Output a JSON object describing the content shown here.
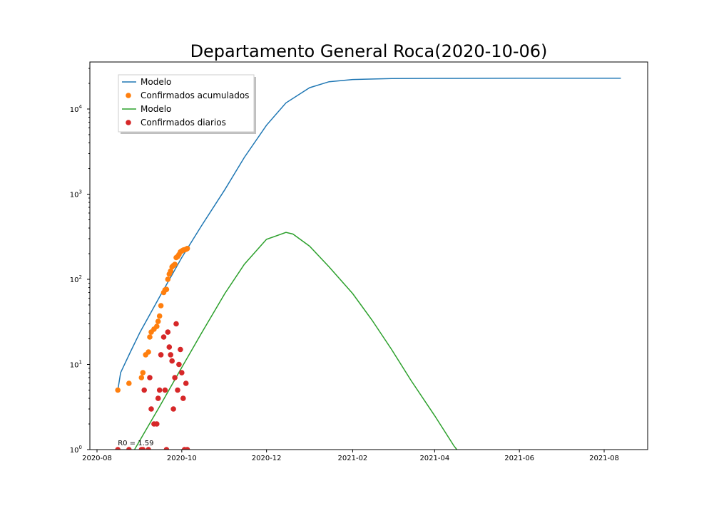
{
  "chart_data": {
    "type": "line",
    "title": "Departamento General Roca(2020-10-06)",
    "xlabel": "",
    "ylabel": "",
    "yscale": "log",
    "ylim": [
      1,
      33000
    ],
    "xlim": [
      "2020-08-01",
      "2021-08-31"
    ],
    "x_ticks": [
      "2020-08",
      "2020-10",
      "2020-12",
      "2021-02",
      "2021-04",
      "2021-06",
      "2021-08"
    ],
    "y_ticks": [
      {
        "base": "10",
        "exp": "0"
      },
      {
        "base": "10",
        "exp": "1"
      },
      {
        "base": "10",
        "exp": "2"
      },
      {
        "base": "10",
        "exp": "3"
      },
      {
        "base": "10",
        "exp": "4"
      }
    ],
    "grid": false,
    "legend": {
      "placement": "upper-left",
      "entries": [
        {
          "label": "Modelo",
          "kind": "line",
          "color": "#1f77b4"
        },
        {
          "label": "Confirmados acumulados",
          "kind": "marker",
          "color": "#ff7f0e"
        },
        {
          "label": "Modelo",
          "kind": "line",
          "color": "#2ca02c"
        },
        {
          "label": "Confirmados diarios",
          "kind": "marker",
          "color": "#d62728"
        }
      ]
    },
    "annotation": {
      "text": "R0 = 1.59",
      "x": "2020-08-16",
      "y": 1.1
    },
    "series": [
      {
        "name": "Modelo",
        "kind": "line",
        "color": "#1f77b4",
        "points": [
          [
            "2020-08-16",
            5
          ],
          [
            "2020-08-18",
            8
          ],
          [
            "2020-08-25",
            14
          ],
          [
            "2020-09-01",
            24
          ],
          [
            "2020-09-15",
            62
          ],
          [
            "2020-10-01",
            180
          ],
          [
            "2020-10-15",
            420
          ],
          [
            "2020-11-01",
            1130
          ],
          [
            "2020-11-15",
            2700
          ],
          [
            "2020-12-01",
            6450
          ],
          [
            "2020-12-15",
            11800
          ],
          [
            "2021-01-01",
            17800
          ],
          [
            "2021-01-15",
            20900
          ],
          [
            "2021-02-01",
            22200
          ],
          [
            "2021-03-01",
            22800
          ],
          [
            "2021-04-01",
            22900
          ],
          [
            "2021-06-01",
            23000
          ],
          [
            "2021-08-13",
            23000
          ]
        ]
      },
      {
        "name": "Confirmados acumulados",
        "kind": "scatter",
        "color": "#ff7f0e",
        "points": [
          [
            "2020-08-16",
            5
          ],
          [
            "2020-08-24",
            6
          ],
          [
            "2020-09-02",
            7
          ],
          [
            "2020-09-03",
            8
          ],
          [
            "2020-09-05",
            13
          ],
          [
            "2020-09-07",
            14
          ],
          [
            "2020-09-08",
            21
          ],
          [
            "2020-09-09",
            24
          ],
          [
            "2020-09-11",
            26
          ],
          [
            "2020-09-13",
            28
          ],
          [
            "2020-09-14",
            32
          ],
          [
            "2020-09-15",
            37
          ],
          [
            "2020-09-16",
            49
          ],
          [
            "2020-09-18",
            70
          ],
          [
            "2020-09-19",
            75
          ],
          [
            "2020-09-20",
            76
          ],
          [
            "2020-09-21",
            100
          ],
          [
            "2020-09-22",
            115
          ],
          [
            "2020-09-23",
            125
          ],
          [
            "2020-09-24",
            140
          ],
          [
            "2020-09-25",
            145
          ],
          [
            "2020-09-26",
            150
          ],
          [
            "2020-09-27",
            180
          ],
          [
            "2020-09-28",
            185
          ],
          [
            "2020-09-29",
            195
          ],
          [
            "2020-09-30",
            210
          ],
          [
            "2020-10-01",
            215
          ],
          [
            "2020-10-02",
            220
          ],
          [
            "2020-10-03",
            222
          ],
          [
            "2020-10-04",
            225
          ],
          [
            "2020-10-05",
            230
          ]
        ]
      },
      {
        "name": "Modelo",
        "kind": "line",
        "color": "#2ca02c",
        "points": [
          [
            "2020-08-28",
            1
          ],
          [
            "2020-09-15",
            3.2
          ],
          [
            "2020-10-01",
            9.2
          ],
          [
            "2020-10-15",
            23
          ],
          [
            "2020-11-01",
            68
          ],
          [
            "2020-11-15",
            150
          ],
          [
            "2020-12-01",
            295
          ],
          [
            "2020-12-15",
            355
          ],
          [
            "2020-12-20",
            340
          ],
          [
            "2021-01-01",
            245
          ],
          [
            "2021-01-15",
            140
          ],
          [
            "2021-02-01",
            68
          ],
          [
            "2021-02-15",
            33
          ],
          [
            "2021-03-01",
            15
          ],
          [
            "2021-03-15",
            6.5
          ],
          [
            "2021-04-01",
            2.5
          ],
          [
            "2021-04-15",
            1.1
          ],
          [
            "2021-04-17",
            1
          ]
        ]
      },
      {
        "name": "Confirmados diarios",
        "kind": "scatter",
        "color": "#d62728",
        "points": [
          [
            "2020-08-16",
            1
          ],
          [
            "2020-08-24",
            1
          ],
          [
            "2020-09-02",
            1
          ],
          [
            "2020-09-03",
            1
          ],
          [
            "2020-09-04",
            5
          ],
          [
            "2020-09-07",
            1
          ],
          [
            "2020-09-08",
            7
          ],
          [
            "2020-09-09",
            3
          ],
          [
            "2020-09-11",
            2
          ],
          [
            "2020-09-13",
            2
          ],
          [
            "2020-09-14",
            4
          ],
          [
            "2020-09-15",
            5
          ],
          [
            "2020-09-16",
            13
          ],
          [
            "2020-09-18",
            21
          ],
          [
            "2020-09-19",
            5
          ],
          [
            "2020-09-20",
            1
          ],
          [
            "2020-09-21",
            24
          ],
          [
            "2020-09-22",
            16
          ],
          [
            "2020-09-23",
            13
          ],
          [
            "2020-09-24",
            11
          ],
          [
            "2020-09-25",
            3
          ],
          [
            "2020-09-26",
            7
          ],
          [
            "2020-09-27",
            30
          ],
          [
            "2020-09-28",
            5
          ],
          [
            "2020-09-29",
            10
          ],
          [
            "2020-09-30",
            15
          ],
          [
            "2020-10-01",
            8
          ],
          [
            "2020-10-02",
            4
          ],
          [
            "2020-10-03",
            1
          ],
          [
            "2020-10-04",
            6
          ],
          [
            "2020-10-05",
            1
          ]
        ]
      }
    ]
  }
}
